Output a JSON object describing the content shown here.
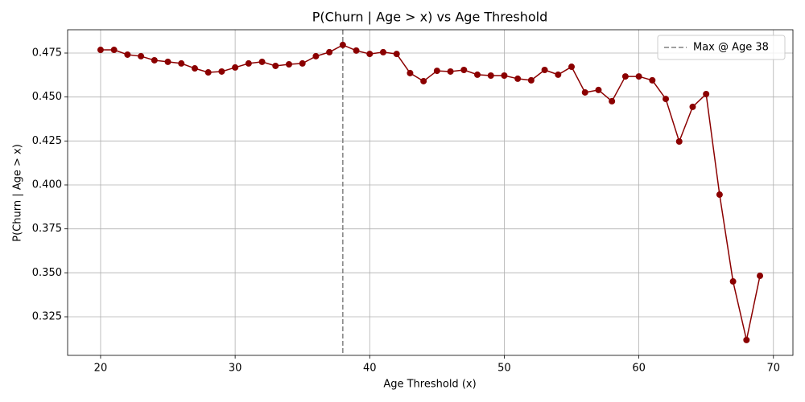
{
  "chart_data": {
    "type": "line",
    "title": "P(Churn | Age > x) vs Age Threshold",
    "x_label": "Age Threshold (x)",
    "y_label": "P(Churn | Age > x)",
    "x": [
      20,
      21,
      22,
      23,
      24,
      25,
      26,
      27,
      28,
      29,
      30,
      31,
      32,
      33,
      34,
      35,
      36,
      37,
      38,
      39,
      40,
      41,
      42,
      43,
      44,
      45,
      46,
      47,
      48,
      49,
      50,
      51,
      52,
      53,
      54,
      55,
      56,
      57,
      58,
      59,
      60,
      61,
      62,
      63,
      64,
      65,
      66,
      67,
      68,
      69
    ],
    "series": [
      {
        "color": "#8b0000",
        "marker": "circle",
        "values": [
          0.4768,
          0.4768,
          0.4741,
          0.4732,
          0.4709,
          0.47,
          0.4691,
          0.4663,
          0.464,
          0.4645,
          0.4668,
          0.4691,
          0.47,
          0.4677,
          0.4686,
          0.4691,
          0.4732,
          0.4755,
          0.4796,
          0.4764,
          0.4745,
          0.4755,
          0.4745,
          0.4636,
          0.459,
          0.4649,
          0.4645,
          0.4654,
          0.4627,
          0.4622,
          0.4622,
          0.4604,
          0.4595,
          0.4654,
          0.4627,
          0.4672,
          0.4526,
          0.454,
          0.4476,
          0.4617,
          0.4617,
          0.4595,
          0.4489,
          0.4247,
          0.4444,
          0.4517,
          0.3945,
          0.3451,
          0.3118,
          0.3483
        ]
      }
    ],
    "reference_lines": [
      {
        "name": "Max @ Age 38",
        "x": 38,
        "color": "#808080",
        "style": "dashed"
      }
    ],
    "xlim": [
      17.55,
      71.45
    ],
    "ylim": [
      0.30305,
      0.48826
    ],
    "xticks": [
      20,
      30,
      40,
      50,
      60,
      70
    ],
    "yticks": [
      0.325,
      {
        "value": 0.35,
        "label": "0.350"
      },
      0.375,
      {
        "value": 0.4,
        "label": "0.400"
      },
      0.425,
      {
        "value": 0.45,
        "label": "0.450"
      },
      0.475
    ],
    "grid": true,
    "legend_position": "upper-right"
  }
}
